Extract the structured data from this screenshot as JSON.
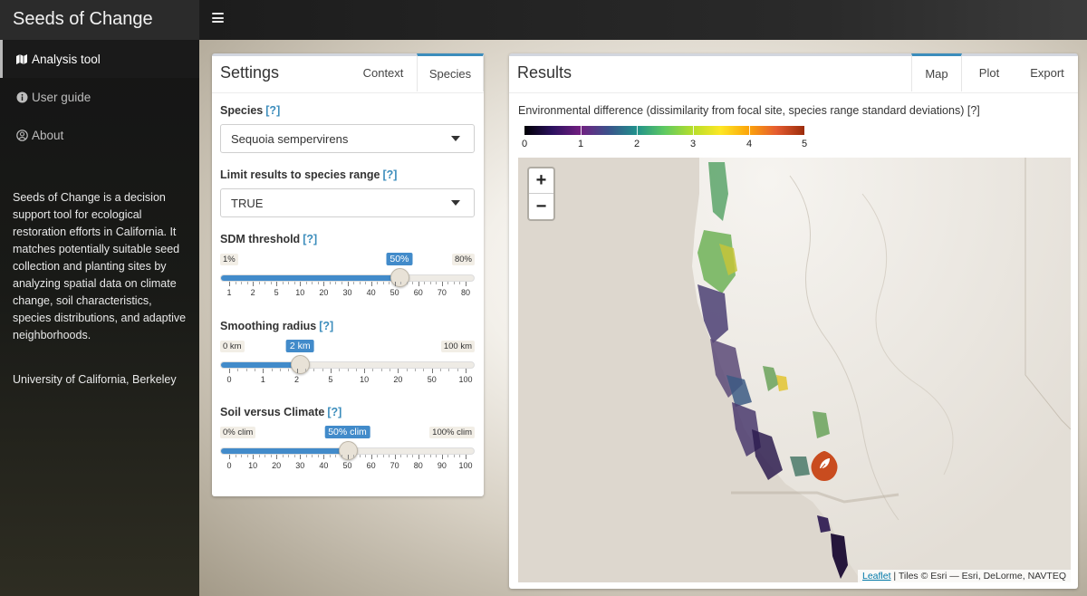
{
  "app": {
    "title": "Seeds of Change"
  },
  "sidebar": {
    "items": [
      {
        "label": "Analysis tool",
        "icon": "map-icon",
        "active": true
      },
      {
        "label": "User guide",
        "icon": "info-icon",
        "active": false
      },
      {
        "label": "About",
        "icon": "user-icon",
        "active": false
      }
    ],
    "description": "Seeds of Change is a decision support tool for ecological restoration efforts in California. It matches potentially suitable seed collection and planting sites by analyzing spatial data on climate change, soil characteristics, species distributions, and adaptive neighborhoods.",
    "affiliation": "University of California, Berkeley"
  },
  "settings": {
    "title": "Settings",
    "tabs": [
      {
        "label": "Context",
        "active": false
      },
      {
        "label": "Species",
        "active": true
      }
    ],
    "help_label": "[?]",
    "species": {
      "label": "Species",
      "value": "Sequoia sempervirens"
    },
    "limit_range": {
      "label": "Limit results to species range",
      "value": "TRUE"
    },
    "sdm": {
      "label": "SDM threshold",
      "min": "1%",
      "max": "80%",
      "value_label": "50%",
      "value_fraction": 0.72,
      "ticks": [
        "1",
        "2",
        "5",
        "10",
        "20",
        "30",
        "40",
        "50",
        "60",
        "70",
        "80"
      ]
    },
    "smoothing": {
      "label": "Smoothing radius",
      "min": "0 km",
      "max": "100 km",
      "value_label": "2 km",
      "value_fraction": 0.3,
      "ticks": [
        "0",
        "1",
        "2",
        "5",
        "10",
        "20",
        "50",
        "100"
      ]
    },
    "soil_climate": {
      "label": "Soil versus Climate",
      "min": "0% clim",
      "max": "100% clim",
      "value_label": "50% clim",
      "value_fraction": 0.5,
      "ticks": [
        "0",
        "10",
        "20",
        "30",
        "40",
        "50",
        "60",
        "70",
        "80",
        "90",
        "100"
      ]
    }
  },
  "results": {
    "title": "Results",
    "tabs": [
      {
        "label": "Map",
        "active": true
      },
      {
        "label": "Plot",
        "active": false
      },
      {
        "label": "Export",
        "active": false
      }
    ],
    "env_title": "Environmental difference (dissimilarity from focal site, species range standard deviations)",
    "help_label": "[?]",
    "colorbar_labels": [
      "0",
      "1",
      "2",
      "3",
      "4",
      "5"
    ],
    "zoom_in": "+",
    "zoom_out": "−",
    "attribution": {
      "link": "Leaflet",
      "rest": " | Tiles © Esri — Esri, DeLorme, NAVTEQ"
    },
    "marker_icon": "leaf-icon"
  },
  "colors": {
    "accent": "#3c8dbc",
    "slider_fill": "#428bca",
    "marker": "#c94c1f"
  }
}
